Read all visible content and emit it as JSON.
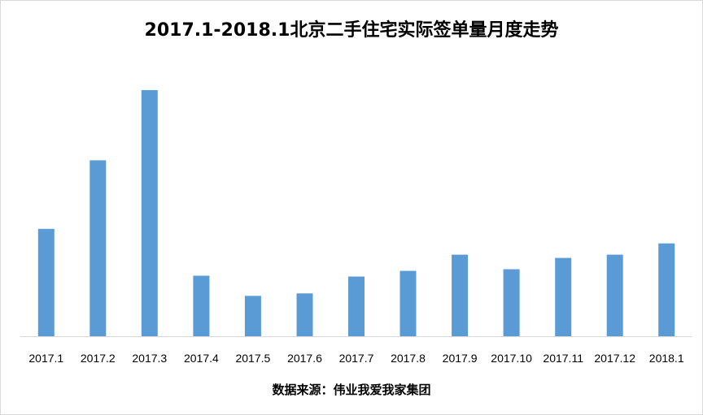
{
  "chart_data": {
    "type": "bar",
    "title": "2017.1-2018.1北京二手住宅实际签单量月度走势",
    "categories": [
      "2017.1",
      "2017.2",
      "2017.3",
      "2017.4",
      "2017.5",
      "2017.6",
      "2017.7",
      "2017.8",
      "2017.9",
      "2017.10",
      "2017.11",
      "2017.12",
      "2018.1"
    ],
    "values": [
      133,
      218,
      305,
      75,
      50,
      53,
      74,
      81,
      101,
      83,
      97,
      101,
      115
    ],
    "xlabel": "",
    "ylabel": "",
    "ylim": [
      0,
      320
    ],
    "grid": false,
    "legend": "none",
    "bar_color": "#5B9BD5",
    "source_note": "数据来源：伟业我爱我家集团"
  }
}
